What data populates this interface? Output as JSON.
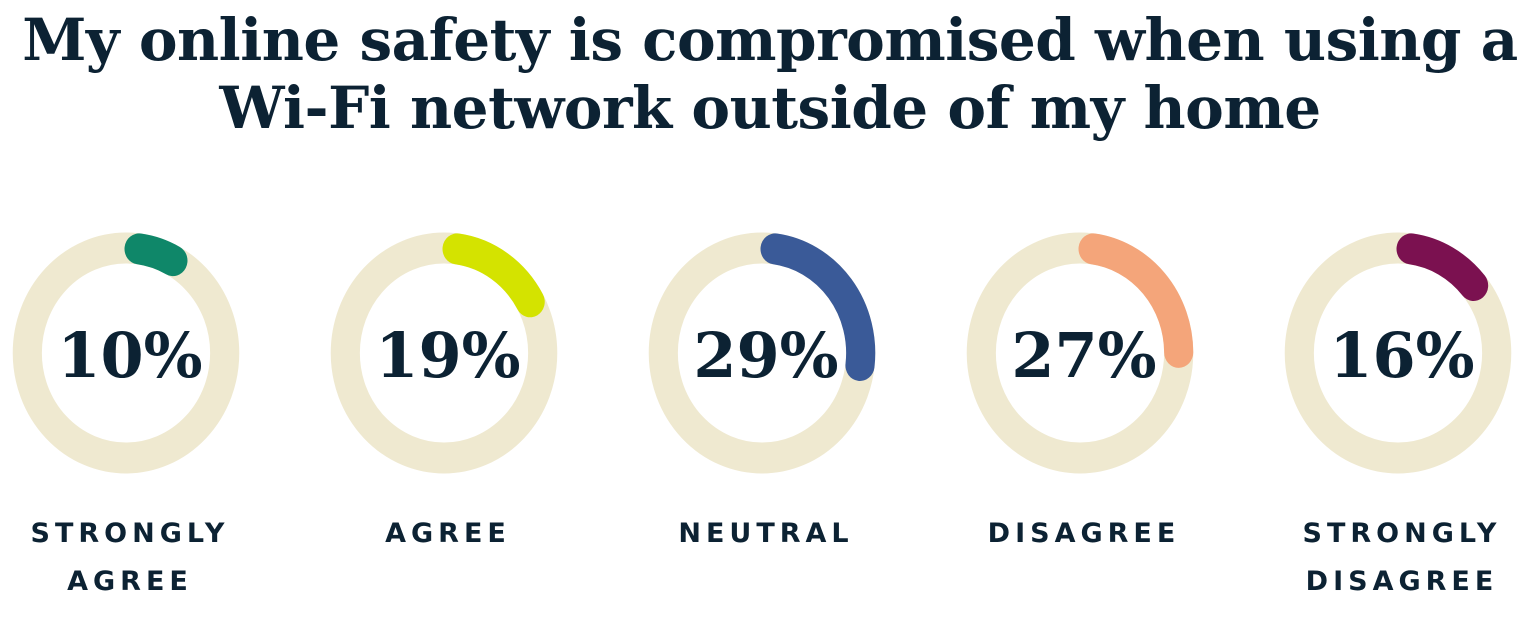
{
  "chart_data": {
    "type": "donut",
    "title": "My online safety is compromised when using a Wi-Fi network outside of my home",
    "categories": [
      "STRONGLY AGREE",
      "AGREE",
      "NEUTRAL",
      "DISAGREE",
      "STRONGLY DISAGREE"
    ],
    "values": [
      10,
      19,
      29,
      27,
      16
    ],
    "labels": [
      "10%",
      "19%",
      "29%",
      "27%",
      "16%"
    ],
    "colors": [
      "#0f8769",
      "#d4e300",
      "#3a5a98",
      "#f4a57a",
      "#7b1150"
    ],
    "track_color": "#efe9d0",
    "unit": "%"
  }
}
